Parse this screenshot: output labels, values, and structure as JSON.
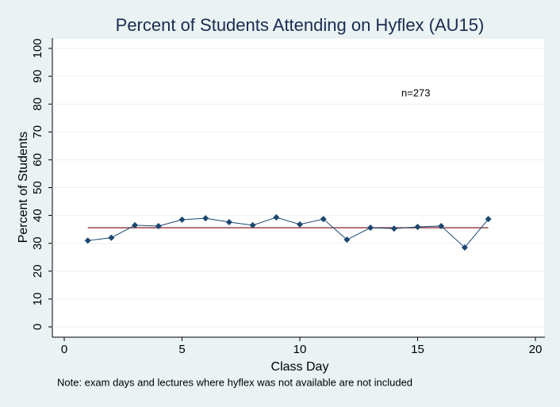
{
  "chart_data": {
    "type": "line",
    "title": "Percent of Students Attending on Hyflex (AU15)",
    "x_label": "Class Day",
    "y_label": "Percent of Students",
    "note": "Note: exam days and lectures where hyflex was not available are not included",
    "annotation": "n=273",
    "x": [
      1,
      2,
      3,
      4,
      5,
      6,
      7,
      8,
      9,
      10,
      11,
      12,
      13,
      14,
      15,
      16,
      17,
      18
    ],
    "series": [
      {
        "color": "#1a476f",
        "values": [
          31,
          32,
          36.5,
          36.2,
          38.5,
          39,
          37.6,
          36.5,
          39.3,
          36.8,
          38.7,
          31.3,
          35.6,
          35.3,
          35.9,
          36.2,
          28.5,
          38.7
        ]
      }
    ],
    "reference_line": {
      "y": 35.6,
      "x": [
        1,
        18
      ],
      "color": "#90353b"
    },
    "xlim": [
      0,
      20
    ],
    "xticks": [
      0,
      5,
      10,
      15,
      20
    ],
    "ylim": [
      0,
      100
    ],
    "yticks": [
      0,
      10,
      20,
      30,
      40,
      50,
      60,
      70,
      80,
      90,
      100
    ],
    "grid": true
  }
}
